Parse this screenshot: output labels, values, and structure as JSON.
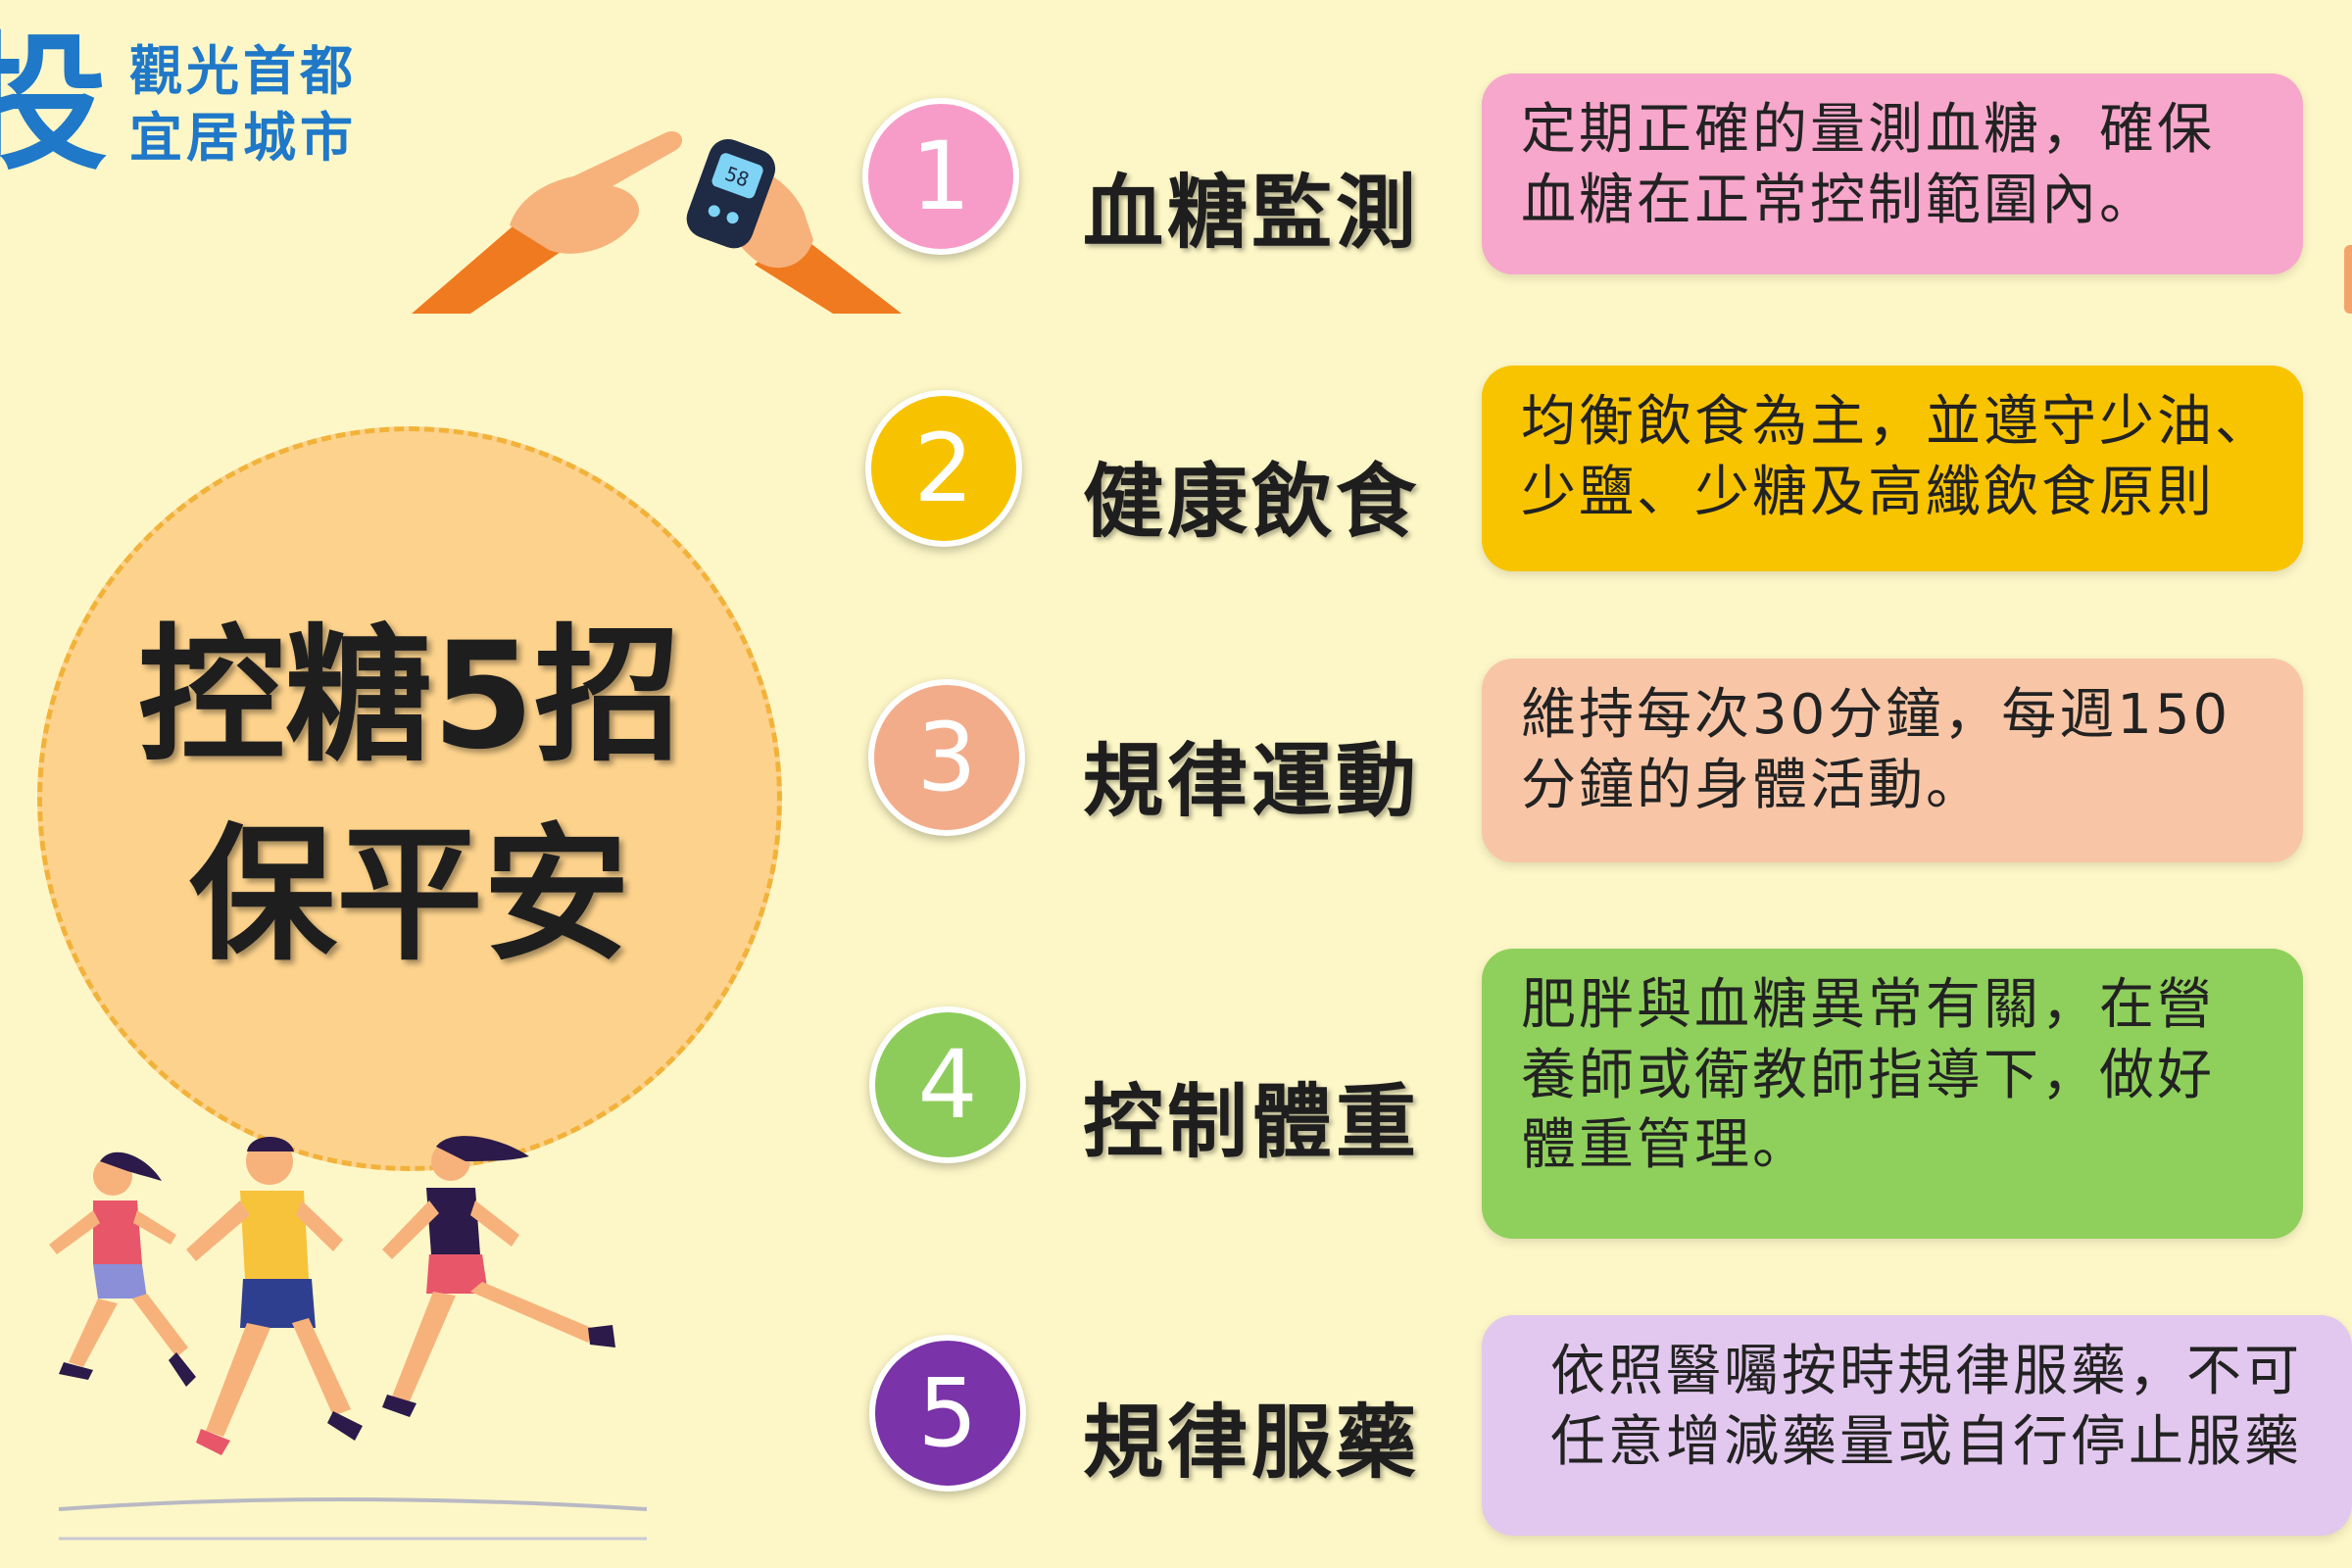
{
  "logo": {
    "big_char": "投",
    "line1": "觀光首都",
    "line2": "宜居城市"
  },
  "meter_reading": "58",
  "title": {
    "line1": "控糖5招",
    "line2": "保平安"
  },
  "colors": {
    "background": "#fdf7c7",
    "circle": "#fcd28c",
    "logo": "#1f78c8"
  },
  "tips": [
    {
      "number": "1",
      "label": "血糖監測",
      "color": "#f79cc8",
      "box_color": "#f7a7cb",
      "lines": [
        "定期正確的量測血糖，確保",
        "血糖在正常控制範圍內。"
      ]
    },
    {
      "number": "2",
      "label": "健康飲食",
      "color": "#f7c300",
      "box_color": "#f8c400",
      "lines": [
        "均衡飲食為主，並遵守少油、",
        "少鹽、少糖及高纖飲食原則"
      ]
    },
    {
      "number": "3",
      "label": "規律運動",
      "color": "#f2ac8a",
      "box_color": "#f8c6a7",
      "lines": [
        "維持每次30分鐘，每週150",
        "分鐘的身體活動。"
      ]
    },
    {
      "number": "4",
      "label": "控制體重",
      "color": "#8dcc5a",
      "box_color": "#8fd05c",
      "lines": [
        "肥胖與血糖異常有關，在營",
        "養師或衛教師指導下，做好",
        "體重管理。"
      ]
    },
    {
      "number": "5",
      "label": "規律服藥",
      "color": "#7a33a8",
      "box_color": "#e2c8ee",
      "lines": [
        "依照醫囑按時規律服藥，不可",
        "任意增減藥量或自行停止服藥"
      ]
    }
  ]
}
